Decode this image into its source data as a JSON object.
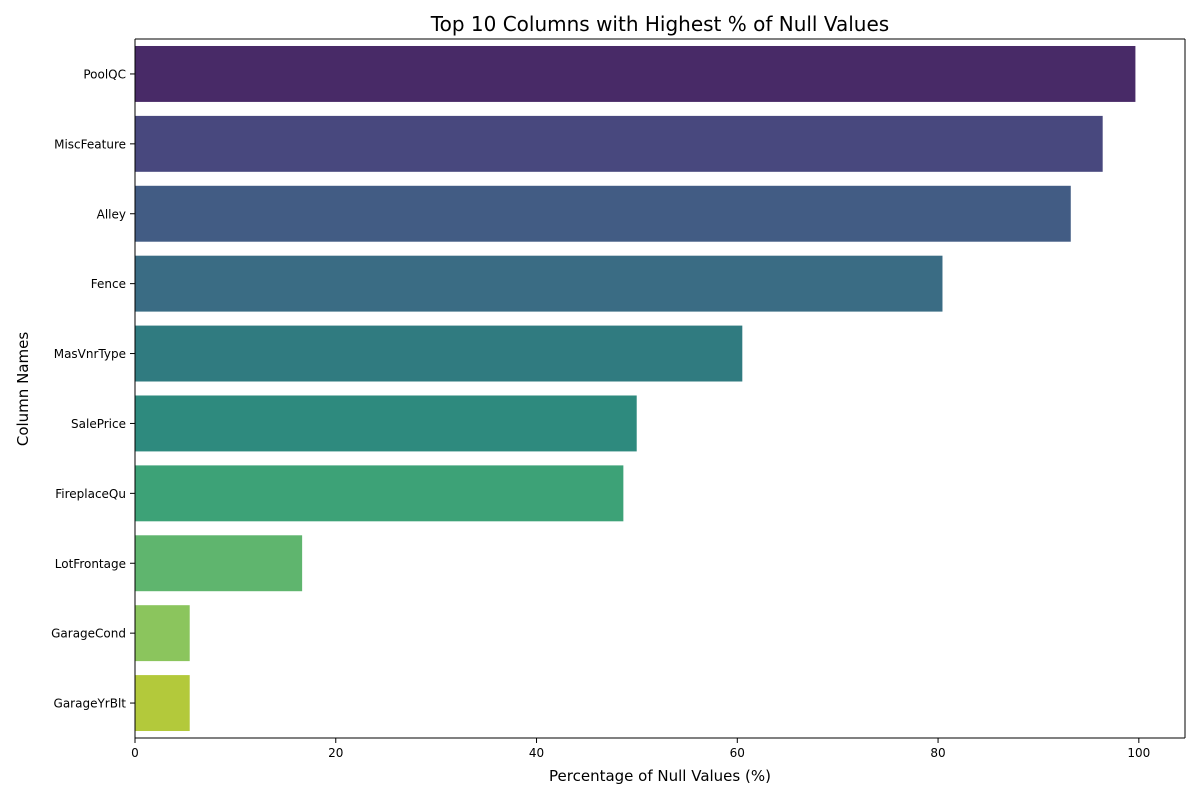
{
  "chart_data": {
    "type": "bar",
    "orientation": "horizontal",
    "title": "Top 10 Columns with Highest % of Null Values",
    "xlabel": "Percentage of Null Values (%)",
    "ylabel": "Column Names",
    "categories": [
      "PoolQC",
      "MiscFeature",
      "Alley",
      "Fence",
      "MasVnrType",
      "SalePrice",
      "FireplaceQu",
      "LotFrontage",
      "GarageCond",
      "GarageYrBlt"
    ],
    "values": [
      99.66,
      96.4,
      93.22,
      80.44,
      60.5,
      49.98,
      48.65,
      16.65,
      5.45,
      5.45
    ],
    "colors": [
      "#482A67",
      "#48487E",
      "#425C84",
      "#3A6C84",
      "#307B80",
      "#2E8A7E",
      "#3DA277",
      "#5FB56E",
      "#8BC55D",
      "#B3C93B"
    ],
    "xlim": [
      0,
      104.6
    ],
    "xticks": [
      0,
      20,
      40,
      60,
      80,
      100
    ],
    "grid": false,
    "legend": "none"
  }
}
